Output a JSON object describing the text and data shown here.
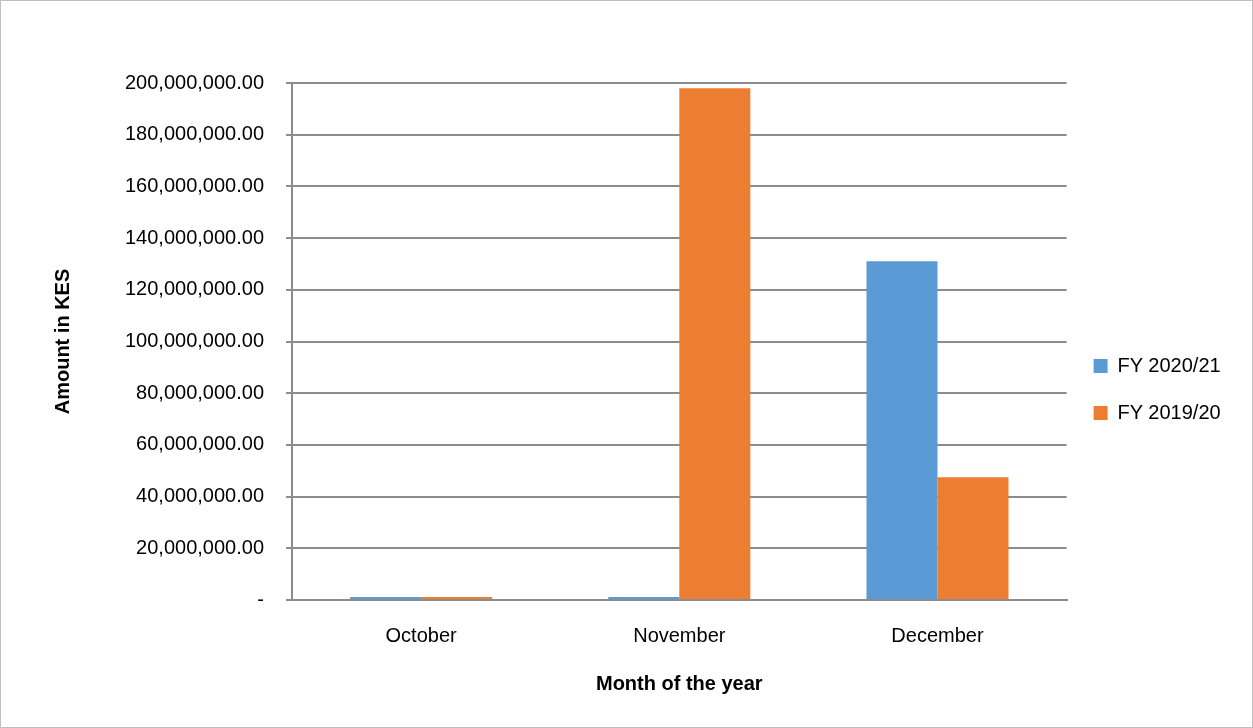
{
  "chart_data": {
    "type": "bar",
    "xlabel": "Month of the year",
    "ylabel": "Amount in KES",
    "categories": [
      "October",
      "November",
      "December"
    ],
    "series": [
      {
        "name": "FY 2020/21",
        "color": "#5b9bd5",
        "values": [
          0,
          0,
          131000000
        ]
      },
      {
        "name": "FY 2019/20",
        "color": "#ed7d31",
        "values": [
          0,
          198000000,
          47500000
        ]
      }
    ],
    "ylim": [
      0,
      200000000
    ],
    "yticks": [
      {
        "value": 0,
        "label": "-"
      },
      {
        "value": 20000000,
        "label": "20,000,000.00"
      },
      {
        "value": 40000000,
        "label": "40,000,000.00"
      },
      {
        "value": 60000000,
        "label": "60,000,000.00"
      },
      {
        "value": 80000000,
        "label": "80,000,000.00"
      },
      {
        "value": 100000000,
        "label": "100,000,000.00"
      },
      {
        "value": 120000000,
        "label": "120,000,000.00"
      },
      {
        "value": 140000000,
        "label": "140,000,000.00"
      },
      {
        "value": 160000000,
        "label": "160,000,000.00"
      },
      {
        "value": 180000000,
        "label": "180,000,000.00"
      },
      {
        "value": 200000000,
        "label": "200,000,000.00"
      }
    ],
    "grid": "y",
    "legend": "right"
  }
}
